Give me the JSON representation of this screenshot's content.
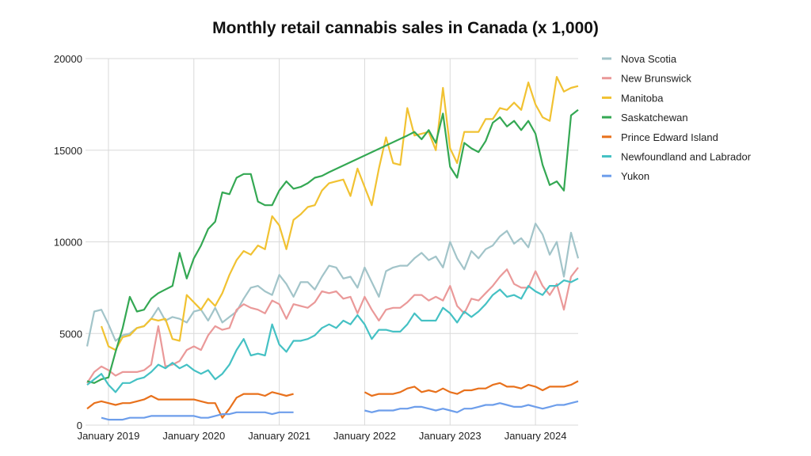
{
  "chart_data": {
    "type": "line",
    "title": "Monthly retail cannabis sales in Canada (x 1,000)",
    "xlabel": "",
    "ylabel": "",
    "ylim": [
      0,
      20000
    ],
    "yticks": [
      "0",
      "5000",
      "10000",
      "15000",
      "20000"
    ],
    "xticks": [
      "January 2019",
      "January 2020",
      "January 2021",
      "January 2022",
      "January 2023",
      "January 2024"
    ],
    "x_start": "October 2018",
    "x_end": "July 2024",
    "grid": true,
    "legend_position": "right",
    "series": [
      {
        "name": "Nova Scotia",
        "color": "#a2c4c9",
        "connect_gaps": false,
        "values": [
          4300,
          6200,
          6300,
          5500,
          4600,
          4900,
          5000,
          5300,
          5400,
          5800,
          6400,
          5700,
          5900,
          5800,
          5600,
          6200,
          6300,
          5700,
          6400,
          5600,
          5900,
          6200,
          6900,
          7500,
          7600,
          7300,
          7100,
          8200,
          7700,
          7000,
          7800,
          7800,
          7400,
          8100,
          8700,
          8600,
          8000,
          8100,
          7500,
          8600,
          7800,
          7000,
          8400,
          8600,
          8700,
          8700,
          9100,
          9400,
          9000,
          9200,
          8600,
          10000,
          9100,
          8500,
          9500,
          9100,
          9600,
          9800,
          10300,
          10600,
          9900,
          10200,
          9700,
          11000,
          10400,
          9300,
          10000,
          8100,
          10500,
          9100
        ]
      },
      {
        "name": "New Brunswick",
        "color": "#ea9999",
        "connect_gaps": false,
        "values": [
          2300,
          2900,
          3200,
          3000,
          2700,
          2900,
          2900,
          2900,
          3000,
          3300,
          5400,
          3200,
          3300,
          3500,
          4100,
          4300,
          4100,
          4900,
          5400,
          5200,
          5300,
          6300,
          6600,
          6400,
          6300,
          6100,
          6800,
          6600,
          5800,
          6600,
          6500,
          6400,
          6700,
          7300,
          7200,
          7300,
          6900,
          7000,
          6100,
          7000,
          6300,
          5700,
          6300,
          6400,
          6400,
          6700,
          7100,
          7100,
          6800,
          7000,
          6800,
          7600,
          6500,
          6100,
          6900,
          6800,
          7200,
          7600,
          8100,
          8500,
          7700,
          7500,
          7500,
          8400,
          7600,
          7100,
          7700,
          6300,
          8100,
          8600
        ]
      },
      {
        "name": "Manitoba",
        "color": "#f1c232",
        "connect_gaps": false,
        "values": [
          null,
          null,
          5400,
          4300,
          4100,
          4800,
          4900,
          5300,
          5400,
          5800,
          5700,
          5800,
          4700,
          4600,
          7100,
          6700,
          6300,
          6900,
          6500,
          7200,
          8200,
          9000,
          9500,
          9300,
          9800,
          9600,
          11400,
          10900,
          9600,
          11200,
          11500,
          11900,
          12000,
          12800,
          13200,
          13300,
          13400,
          12500,
          14000,
          13000,
          12000,
          14000,
          15700,
          14300,
          14200,
          17300,
          15800,
          15900,
          16000,
          15000,
          18400,
          15100,
          14300,
          16000,
          16000,
          16000,
          16700,
          16700,
          17300,
          17200,
          17600,
          17200,
          18700,
          17500,
          16800,
          16600,
          19000,
          18200,
          18400,
          18500
        ]
      },
      {
        "name": "Saskatchewan",
        "color": "#34a853",
        "connect_gaps": true,
        "values": [
          2400,
          2300,
          2500,
          2600,
          4000,
          5300,
          7000,
          6200,
          6300,
          6900,
          7200,
          7400,
          7600,
          9400,
          8000,
          9100,
          9800,
          10700,
          11100,
          12700,
          12600,
          13500,
          13700,
          13700,
          12200,
          12000,
          12000,
          12800,
          13300,
          12900,
          13000,
          13200,
          13500,
          13600,
          13800,
          null,
          null,
          null,
          null,
          null,
          null,
          null,
          null,
          null,
          null,
          15800,
          16000,
          15600,
          16100,
          15400,
          17000,
          14100,
          13500,
          15400,
          15100,
          14900,
          15500,
          16500,
          16800,
          16300,
          16600,
          16100,
          16600,
          15900,
          14200,
          13100,
          13300,
          12800,
          16900,
          17200
        ]
      },
      {
        "name": "Prince Edward Island",
        "color": "#e8711c",
        "connect_gaps": false,
        "values": [
          900,
          1200,
          1300,
          1200,
          1100,
          1200,
          1200,
          1300,
          1400,
          1600,
          1400,
          1400,
          1400,
          1400,
          1400,
          1400,
          1300,
          1200,
          1200,
          400,
          900,
          1500,
          1700,
          1700,
          1700,
          1600,
          1800,
          1700,
          1600,
          1700,
          null,
          null,
          null,
          null,
          null,
          null,
          null,
          null,
          null,
          1800,
          1600,
          1700,
          1700,
          1700,
          1800,
          2000,
          2100,
          1800,
          1900,
          1800,
          2000,
          1800,
          1700,
          1900,
          1900,
          2000,
          2000,
          2200,
          2300,
          2100,
          2100,
          2000,
          2200,
          2100,
          1900,
          2100,
          2100,
          2100,
          2200,
          2400
        ]
      },
      {
        "name": "Newfoundland and Labrador",
        "color": "#45c1c4",
        "connect_gaps": false,
        "values": [
          2200,
          2500,
          2800,
          2200,
          1800,
          2300,
          2300,
          2500,
          2600,
          2900,
          3300,
          3100,
          3400,
          3100,
          3300,
          3000,
          2800,
          3000,
          2500,
          2800,
          3300,
          4100,
          4700,
          3800,
          3900,
          3800,
          5500,
          4400,
          4000,
          4600,
          4600,
          4700,
          4900,
          5300,
          5500,
          5300,
          5700,
          5500,
          6000,
          5500,
          4700,
          5200,
          5200,
          5100,
          5100,
          5500,
          6100,
          5700,
          5700,
          5700,
          6400,
          6100,
          5600,
          6200,
          5900,
          6200,
          6600,
          7100,
          7400,
          7000,
          7100,
          6900,
          7600,
          7300,
          7100,
          7600,
          7600,
          7900,
          7800,
          8000
        ]
      },
      {
        "name": "Yukon",
        "color": "#6d9eeb",
        "connect_gaps": false,
        "values": [
          null,
          null,
          400,
          300,
          300,
          300,
          400,
          400,
          400,
          500,
          500,
          500,
          500,
          500,
          500,
          500,
          400,
          400,
          500,
          600,
          600,
          700,
          700,
          700,
          700,
          700,
          600,
          700,
          700,
          700,
          null,
          null,
          null,
          null,
          null,
          null,
          null,
          null,
          null,
          800,
          700,
          800,
          800,
          800,
          900,
          900,
          1000,
          1000,
          900,
          800,
          900,
          800,
          700,
          900,
          900,
          1000,
          1100,
          1100,
          1200,
          1100,
          1000,
          1000,
          1100,
          1000,
          900,
          1000,
          1100,
          1100,
          1200,
          1300
        ]
      }
    ]
  }
}
